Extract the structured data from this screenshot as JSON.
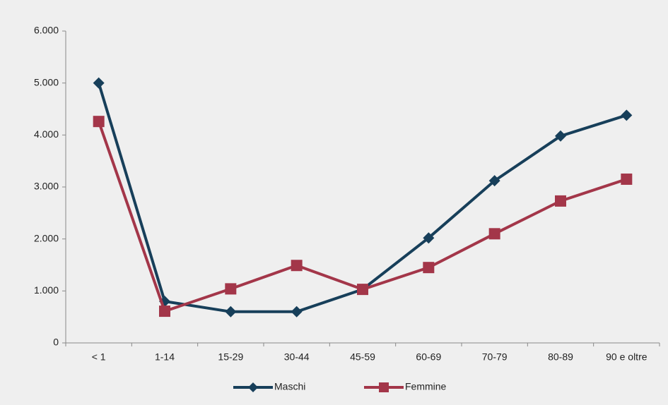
{
  "chart_data": {
    "type": "line",
    "categories": [
      "< 1",
      "1-14",
      "15-29",
      "30-44",
      "45-59",
      "60-69",
      "70-79",
      "80-89",
      "90 e oltre"
    ],
    "series": [
      {
        "name": "Maschi",
        "color": "#173f5a",
        "marker": "diamond",
        "values": [
          5000,
          800,
          600,
          600,
          1030,
          2020,
          3120,
          3980,
          4380
        ]
      },
      {
        "name": "Femmine",
        "color": "#a33649",
        "marker": "square",
        "values": [
          4260,
          610,
          1040,
          1490,
          1030,
          1450,
          2100,
          2730,
          3150
        ]
      }
    ],
    "ylim": [
      0,
      6000
    ],
    "yticks": [
      {
        "value": 0,
        "label": "0"
      },
      {
        "value": 1000,
        "label": "1.000"
      },
      {
        "value": 2000,
        "label": "2.000"
      },
      {
        "value": 3000,
        "label": "3.000"
      },
      {
        "value": 4000,
        "label": "4.000"
      },
      {
        "value": 5000,
        "label": "5.000"
      },
      {
        "value": 6000,
        "label": "6.000"
      }
    ],
    "grid": false,
    "legend": "bottom"
  }
}
